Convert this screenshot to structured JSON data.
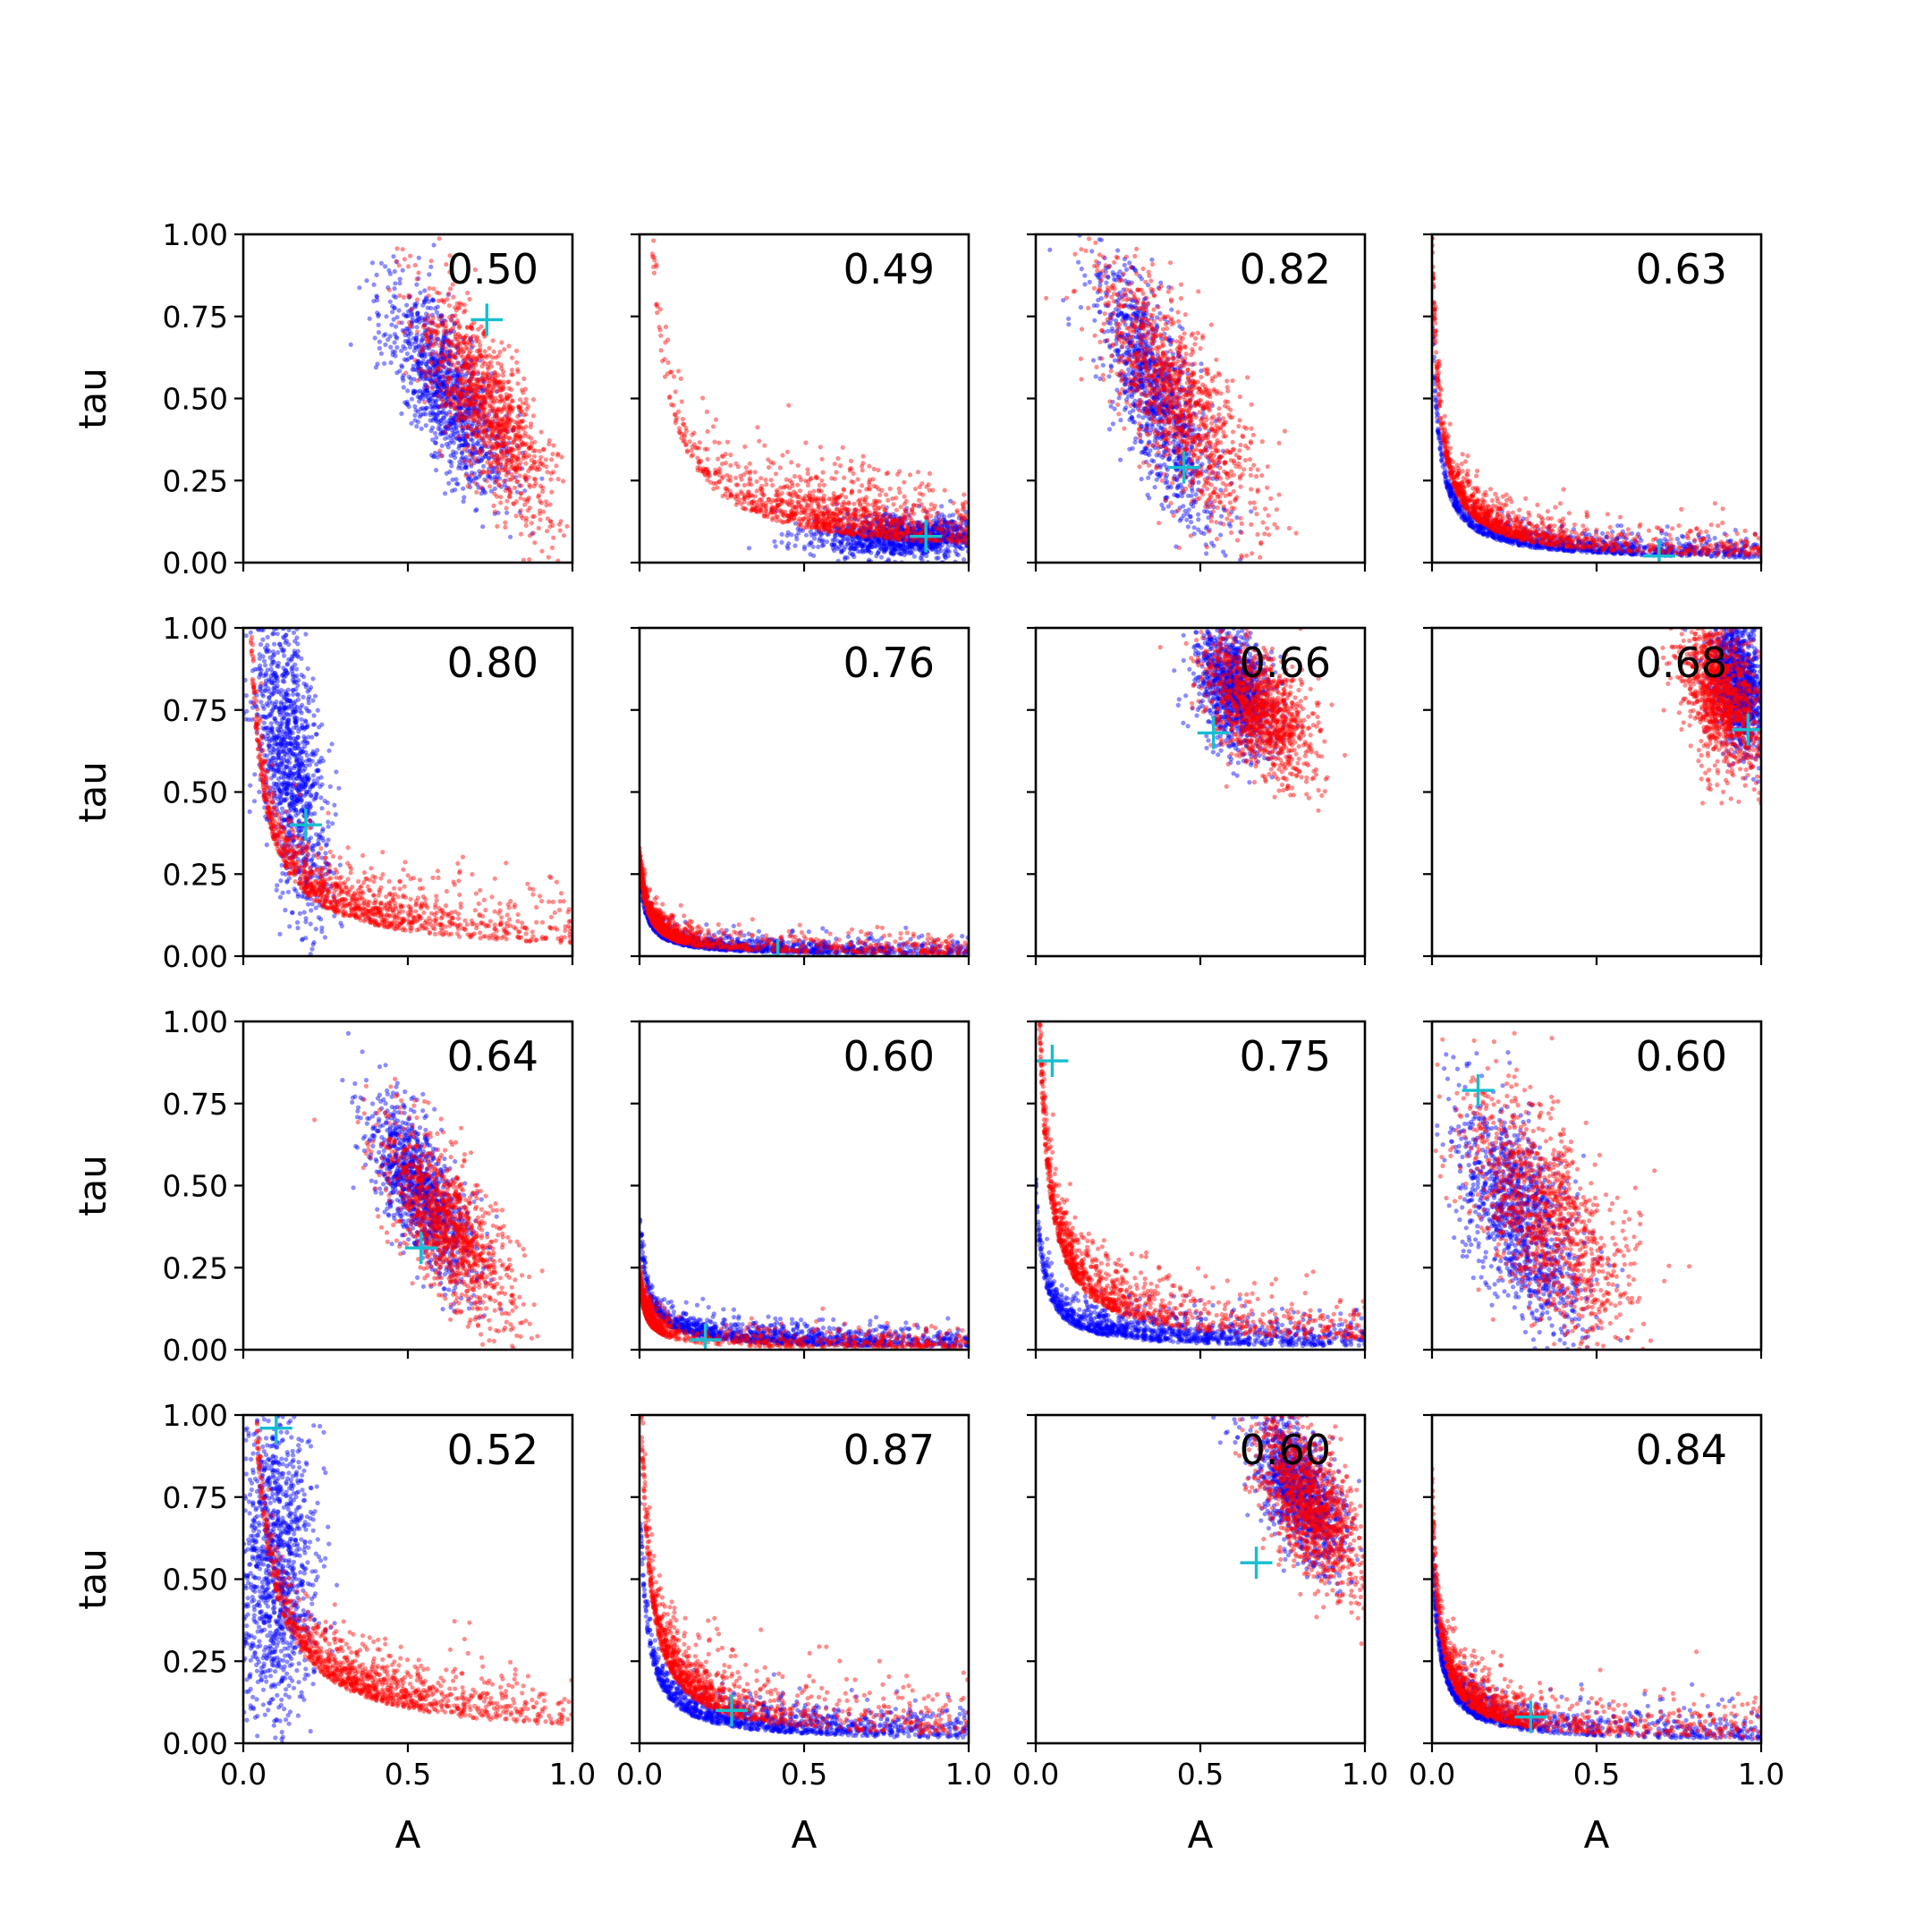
{
  "chart_data": {
    "type": "scatter",
    "layout": "4x4 grid of subplots",
    "xlabel": "A",
    "ylabel": "tau",
    "xlim": [
      0,
      1
    ],
    "ylim": [
      0,
      1
    ],
    "x_ticks": [
      "0.0",
      "0.5",
      "1.0"
    ],
    "y_ticks": [
      "0.00",
      "0.25",
      "0.50",
      "0.75",
      "1.00"
    ],
    "colors": {
      "blue": "#0000ff",
      "red": "#ff0000",
      "marker": "#17becf"
    },
    "grid": false,
    "legend": "none",
    "subplots": [
      {
        "label": "0.50",
        "marker": [
          0.74,
          0.74
        ],
        "blue": {
          "cx": 0.62,
          "cy": 0.52,
          "sx": 0.09,
          "sy": 0.15,
          "rho": -0.7
        },
        "red": {
          "cx": 0.74,
          "cy": 0.47,
          "sx": 0.1,
          "sy": 0.17,
          "rho": -0.75
        }
      },
      {
        "label": "0.49",
        "marker": [
          0.87,
          0.08
        ],
        "blue": {
          "kind": "cluster",
          "cx": 0.82,
          "cy": 0.08,
          "sx": 0.15,
          "sy": 0.03
        },
        "red": {
          "kind": "curve",
          "k": 0.055,
          "cx": 0.6,
          "sx": 0.15,
          "jitter": 0.06
        }
      },
      {
        "label": "0.82",
        "marker": [
          0.45,
          0.29
        ],
        "blue": {
          "cx": 0.37,
          "cy": 0.5,
          "sx": 0.09,
          "sy": 0.2,
          "rho": -0.75
        },
        "red": {
          "cx": 0.43,
          "cy": 0.5,
          "sx": 0.12,
          "sy": 0.2,
          "rho": -0.75
        }
      },
      {
        "label": "0.63",
        "marker": [
          0.69,
          0.02
        ],
        "blue": {
          "kind": "curve",
          "k": 0.015,
          "cx": 0.2,
          "sx": 0.3,
          "jitter": 0.02
        },
        "red": {
          "kind": "curve",
          "k": 0.02,
          "cx": 0.12,
          "sx": 0.12,
          "jitter": 0.03
        }
      },
      {
        "label": "0.80",
        "marker": [
          0.19,
          0.4
        ],
        "blue": {
          "cx": 0.14,
          "cy": 0.6,
          "sx": 0.06,
          "sy": 0.25,
          "rho": -0.6
        },
        "red": {
          "kind": "curve",
          "k": 0.04,
          "cx": 0.22,
          "sx": 0.15,
          "jitter": 0.05
        }
      },
      {
        "label": "0.76",
        "marker": [
          0.42,
          0.0
        ],
        "blue": {
          "kind": "curve",
          "k": 0.005,
          "cx": 0.1,
          "sx": 0.2,
          "jitter": 0.015
        },
        "red": {
          "kind": "curve",
          "k": 0.006,
          "cx": 0.05,
          "sx": 0.05,
          "jitter": 0.02
        }
      },
      {
        "label": "0.66",
        "marker": [
          0.54,
          0.68
        ],
        "blue": {
          "cx": 0.6,
          "cy": 0.82,
          "sx": 0.06,
          "sy": 0.1,
          "rho": -0.4
        },
        "red": {
          "cx": 0.68,
          "cy": 0.75,
          "sx": 0.08,
          "sy": 0.1,
          "rho": -0.5
        }
      },
      {
        "label": "0.68",
        "marker": [
          0.96,
          0.69
        ],
        "blue": {
          "cx": 0.93,
          "cy": 0.83,
          "sx": 0.04,
          "sy": 0.1,
          "rho": -0.3
        },
        "red": {
          "cx": 0.88,
          "cy": 0.8,
          "sx": 0.06,
          "sy": 0.12,
          "rho": -0.4
        }
      },
      {
        "label": "0.64",
        "marker": [
          0.54,
          0.31
        ],
        "blue": {
          "cx": 0.54,
          "cy": 0.48,
          "sx": 0.08,
          "sy": 0.14,
          "rho": -0.7
        },
        "red": {
          "cx": 0.62,
          "cy": 0.38,
          "sx": 0.1,
          "sy": 0.15,
          "rho": -0.7
        }
      },
      {
        "label": "0.60",
        "marker": [
          0.2,
          0.03
        ],
        "blue": {
          "kind": "curve",
          "k": 0.008,
          "cx": 0.2,
          "sx": 0.3,
          "jitter": 0.02
        },
        "red": {
          "kind": "curve",
          "k": 0.004,
          "cx": 0.02,
          "sx": 0.02,
          "jitter": 0.02
        }
      },
      {
        "label": "0.75",
        "marker": [
          0.05,
          0.88
        ],
        "blue": {
          "kind": "curve",
          "k": 0.01,
          "cx": 0.15,
          "sx": 0.25,
          "jitter": 0.03
        },
        "red": {
          "kind": "curve",
          "k": 0.03,
          "cx": 0.1,
          "sx": 0.1,
          "jitter": 0.05
        }
      },
      {
        "label": "0.60",
        "marker": [
          0.14,
          0.79
        ],
        "blue": {
          "cx": 0.27,
          "cy": 0.4,
          "sx": 0.1,
          "sy": 0.18,
          "rho": -0.6
        },
        "red": {
          "cx": 0.35,
          "cy": 0.4,
          "sx": 0.13,
          "sy": 0.2,
          "rho": -0.65
        }
      },
      {
        "label": "0.52",
        "marker": [
          0.1,
          0.96
        ],
        "blue": {
          "cx": 0.1,
          "cy": 0.55,
          "sx": 0.06,
          "sy": 0.25,
          "rho": 0.0
        },
        "red": {
          "kind": "curve",
          "k": 0.055,
          "cx": 0.33,
          "sx": 0.14,
          "jitter": 0.05
        }
      },
      {
        "label": "0.87",
        "marker": [
          0.28,
          0.1
        ],
        "blue": {
          "kind": "curve",
          "k": 0.015,
          "cx": 0.2,
          "sx": 0.25,
          "jitter": 0.03
        },
        "red": {
          "kind": "curve",
          "k": 0.025,
          "cx": 0.12,
          "sx": 0.08,
          "jitter": 0.05
        }
      },
      {
        "label": "0.60",
        "marker": [
          0.67,
          0.55
        ],
        "blue": {
          "cx": 0.8,
          "cy": 0.77,
          "sx": 0.07,
          "sy": 0.12,
          "rho": -0.6
        },
        "red": {
          "cx": 0.83,
          "cy": 0.73,
          "sx": 0.08,
          "sy": 0.13,
          "rho": -0.6
        }
      },
      {
        "label": "0.84",
        "marker": [
          0.3,
          0.08
        ],
        "blue": {
          "kind": "curve",
          "k": 0.012,
          "cx": 0.08,
          "sx": 0.08,
          "jitter": 0.03
        },
        "red": {
          "kind": "curve",
          "k": 0.015,
          "cx": 0.12,
          "sx": 0.08,
          "jitter": 0.04
        }
      }
    ]
  }
}
